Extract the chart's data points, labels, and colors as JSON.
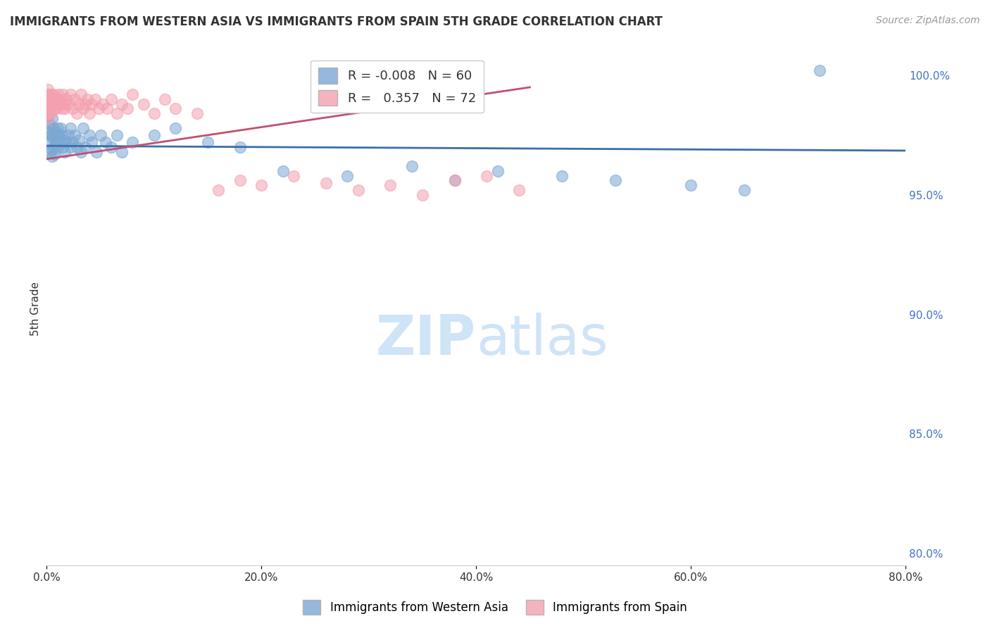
{
  "title": "IMMIGRANTS FROM WESTERN ASIA VS IMMIGRANTS FROM SPAIN 5TH GRADE CORRELATION CHART",
  "source": "Source: ZipAtlas.com",
  "ylabel_label": "5th Grade",
  "legend_blue": {
    "R": "-0.008",
    "N": "60",
    "label": "Immigrants from Western Asia"
  },
  "legend_pink": {
    "R": "0.357",
    "N": "72",
    "label": "Immigrants from Spain"
  },
  "blue_scatter_x": [
    0.001,
    0.001,
    0.002,
    0.002,
    0.003,
    0.003,
    0.004,
    0.004,
    0.005,
    0.005,
    0.005,
    0.006,
    0.006,
    0.007,
    0.007,
    0.008,
    0.009,
    0.01,
    0.01,
    0.011,
    0.012,
    0.013,
    0.014,
    0.015,
    0.016,
    0.017,
    0.018,
    0.02,
    0.022,
    0.022,
    0.024,
    0.026,
    0.028,
    0.03,
    0.032,
    0.034,
    0.036,
    0.04,
    0.042,
    0.046,
    0.05,
    0.055,
    0.06,
    0.065,
    0.07,
    0.08,
    0.1,
    0.12,
    0.15,
    0.18,
    0.22,
    0.28,
    0.34,
    0.38,
    0.42,
    0.48,
    0.53,
    0.6,
    0.65,
    0.72
  ],
  "blue_scatter_y": [
    0.983,
    0.976,
    0.98,
    0.972,
    0.978,
    0.968,
    0.975,
    0.969,
    0.982,
    0.974,
    0.966,
    0.978,
    0.97,
    0.975,
    0.967,
    0.973,
    0.976,
    0.978,
    0.97,
    0.975,
    0.972,
    0.978,
    0.975,
    0.97,
    0.973,
    0.968,
    0.972,
    0.975,
    0.97,
    0.978,
    0.972,
    0.975,
    0.97,
    0.973,
    0.968,
    0.978,
    0.97,
    0.975,
    0.972,
    0.968,
    0.975,
    0.972,
    0.97,
    0.975,
    0.968,
    0.972,
    0.975,
    0.978,
    0.972,
    0.97,
    0.96,
    0.958,
    0.962,
    0.956,
    0.96,
    0.958,
    0.956,
    0.954,
    0.952,
    1.002
  ],
  "pink_scatter_x": [
    0.0002,
    0.0003,
    0.0004,
    0.0005,
    0.0006,
    0.0007,
    0.001,
    0.001,
    0.001,
    0.001,
    0.002,
    0.002,
    0.002,
    0.003,
    0.003,
    0.003,
    0.004,
    0.004,
    0.005,
    0.005,
    0.006,
    0.006,
    0.007,
    0.007,
    0.008,
    0.009,
    0.01,
    0.011,
    0.012,
    0.013,
    0.014,
    0.015,
    0.016,
    0.017,
    0.018,
    0.02,
    0.022,
    0.024,
    0.026,
    0.028,
    0.03,
    0.032,
    0.034,
    0.036,
    0.038,
    0.04,
    0.042,
    0.045,
    0.048,
    0.052,
    0.056,
    0.06,
    0.065,
    0.07,
    0.075,
    0.08,
    0.09,
    0.1,
    0.11,
    0.12,
    0.14,
    0.16,
    0.18,
    0.2,
    0.23,
    0.26,
    0.29,
    0.32,
    0.35,
    0.38,
    0.41,
    0.44
  ],
  "pink_scatter_y": [
    0.988,
    0.99,
    0.986,
    0.984,
    0.992,
    0.988,
    0.99,
    0.986,
    0.982,
    0.994,
    0.988,
    0.984,
    0.992,
    0.99,
    0.986,
    0.984,
    0.992,
    0.988,
    0.986,
    0.99,
    0.988,
    0.992,
    0.986,
    0.99,
    0.988,
    0.986,
    0.99,
    0.992,
    0.988,
    0.99,
    0.986,
    0.992,
    0.988,
    0.986,
    0.99,
    0.988,
    0.992,
    0.986,
    0.99,
    0.984,
    0.988,
    0.992,
    0.986,
    0.988,
    0.99,
    0.984,
    0.988,
    0.99,
    0.986,
    0.988,
    0.986,
    0.99,
    0.984,
    0.988,
    0.986,
    0.992,
    0.988,
    0.984,
    0.99,
    0.986,
    0.984,
    0.952,
    0.956,
    0.954,
    0.958,
    0.955,
    0.952,
    0.954,
    0.95,
    0.956,
    0.958,
    0.952
  ],
  "blue_line_x": [
    0.0,
    0.8
  ],
  "blue_line_y": [
    0.9705,
    0.9685
  ],
  "pink_line_x": [
    0.0,
    0.45
  ],
  "pink_line_y": [
    0.965,
    0.995
  ],
  "xlim": [
    0.0,
    0.8
  ],
  "ylim": [
    0.795,
    1.01
  ],
  "x_ticks": [
    0.0,
    0.2,
    0.4,
    0.6,
    0.8
  ],
  "y_ticks_right": [
    0.8,
    0.85,
    0.9,
    0.95,
    1.0
  ],
  "blue_color": "#7BA7D4",
  "pink_color": "#F4A0B0",
  "blue_line_color": "#3A6FA8",
  "pink_line_color": "#C05070",
  "grid_color": "#CCCCCC",
  "right_axis_color": "#4472C4",
  "watermark_color": "#D0E4F7",
  "background_color": "#FFFFFF",
  "title_color": "#333333",
  "source_color": "#999999",
  "tick_color": "#333333"
}
